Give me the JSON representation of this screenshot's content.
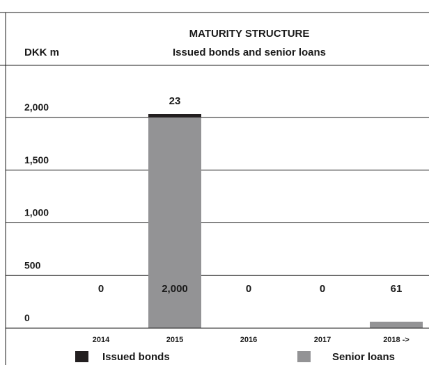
{
  "chart_data": {
    "type": "bar",
    "stacked": true,
    "title": "MATURITY STRUCTURE",
    "subtitle": "Issued bonds and senior loans",
    "ylabel": "DKK m",
    "xlabel": "",
    "ylim": [
      0,
      2000
    ],
    "grid": true,
    "legend_position": "bottom",
    "categories": [
      "2014",
      "2015",
      "2016",
      "2017",
      "2018 ->"
    ],
    "y_ticks": [
      "0",
      "500",
      "1,000",
      "1,500",
      "2,000"
    ],
    "series": [
      {
        "name": "Senior loans",
        "color": "#939395",
        "values": [
          0,
          2000,
          0,
          0,
          61
        ]
      },
      {
        "name": "Issued bonds",
        "color": "#231f20",
        "values": [
          0,
          23,
          0,
          0,
          0
        ]
      }
    ],
    "data_labels": {
      "senior_loans": [
        "0",
        "2,000",
        "0",
        "0",
        "61"
      ],
      "issued_bonds": [
        "",
        "23",
        "",
        "",
        ""
      ]
    }
  }
}
